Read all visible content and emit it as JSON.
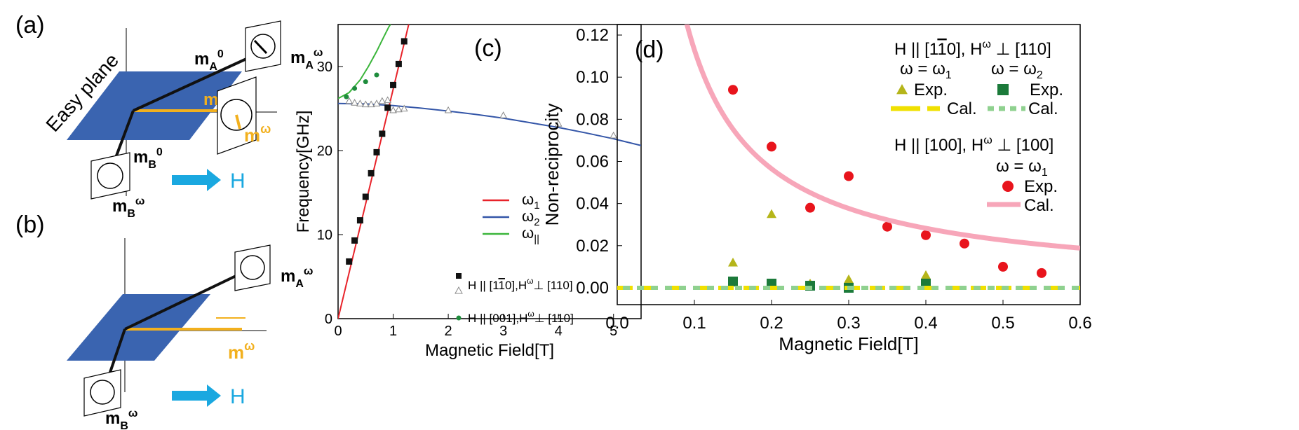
{
  "colors": {
    "easy_plane": "#3a64b0",
    "vector": "#111111",
    "m_omega": "#f2b01e",
    "field_arrow": "#1aa8e0",
    "omega1_line": "#e8232a",
    "omega2_line": "#3456a8",
    "omega_par_line": "#3bb53b",
    "exp_sq": "#111111",
    "exp_tri": "#888888",
    "exp_circ_c": "#1e8c3c",
    "exp_tri_d": "#b5b51a",
    "exp_sq_d": "#1b7a3a",
    "exp_circ_d": "#e8141c",
    "cal_yellow": "#f0e000",
    "cal_green": "#8fd18f",
    "cal_pink": "#f7a6b9"
  },
  "panel_a": {
    "label": "(a)",
    "easy_plane_label": "Easy plane",
    "mA0": {
      "m": "m",
      "sub": "A",
      "sup": "0"
    },
    "mAw": {
      "m": "m",
      "sub": "A",
      "sup": "ω"
    },
    "m0": {
      "m": "m",
      "sup": "0"
    },
    "mw": {
      "m": "m",
      "sup": "ω"
    },
    "mB0": {
      "m": "m",
      "sub": "B",
      "sup": "0"
    },
    "mBw": {
      "m": "m",
      "sub": "B",
      "sup": "ω"
    },
    "H": "H"
  },
  "panel_b": {
    "label": "(b)",
    "mAw": {
      "m": "m",
      "sub": "A",
      "sup": "ω"
    },
    "mw": {
      "m": "m",
      "sup": "ω"
    },
    "mBw": {
      "m": "m",
      "sub": "B",
      "sup": "ω"
    },
    "H": "H"
  },
  "chart_data": [
    {
      "panel": "(c)",
      "type": "line",
      "xlabel": "Magnetic Field[T]",
      "ylabel": "Frequency[GHz]",
      "xlim": [
        0,
        5.5
      ],
      "ylim": [
        0,
        35
      ],
      "xticks": [
        0,
        1,
        2,
        3,
        4,
        5
      ],
      "yticks": [
        0,
        10,
        20,
        30
      ],
      "series": [
        {
          "name": "ω1",
          "key": "omega1_line",
          "kind": "line",
          "x": [
            0,
            1.3
          ],
          "y": [
            0,
            35.5
          ]
        },
        {
          "name": "ω2",
          "key": "omega2_line",
          "kind": "line",
          "x": [
            0,
            0.5,
            1,
            1.5,
            2,
            2.5,
            3,
            3.5,
            4,
            4.5,
            5,
            5.5
          ],
          "y": [
            25.6,
            25.55,
            25.35,
            25.05,
            24.7,
            24.3,
            23.85,
            23.3,
            22.75,
            22.1,
            21.4,
            20.6
          ]
        },
        {
          "name": "ω||",
          "key": "omega_par_line",
          "kind": "line",
          "x": [
            0,
            0.2,
            0.4,
            0.55,
            0.7,
            0.82,
            0.92,
            1.0
          ],
          "y": [
            26.2,
            26.9,
            28.4,
            30,
            31.8,
            33.4,
            34.7,
            35.5
          ]
        },
        {
          "name": "H || [11̄0],Hω⊥ [110]",
          "key": "exp_sq",
          "kind": "square",
          "x": [
            0.2,
            0.3,
            0.4,
            0.5,
            0.6,
            0.7,
            0.8,
            0.9,
            1.0,
            1.1,
            1.2
          ],
          "y": [
            6.8,
            9.3,
            11.7,
            14.5,
            17.3,
            19.8,
            22.0,
            25.1,
            27.8,
            30.3,
            33.0
          ]
        },
        {
          "name": "H || [11̄0],Hω⊥ [110]",
          "key": "exp_tri",
          "kind": "triangle",
          "x": [
            0.2,
            0.3,
            0.4,
            0.5,
            0.6,
            0.7,
            0.8,
            0.9,
            1.0,
            1.1,
            1.2,
            2.0,
            3.0,
            4.0,
            5.0
          ],
          "y": [
            25.9,
            25.7,
            25.6,
            25.5,
            25.5,
            25.6,
            25.9,
            26.0,
            24.8,
            24.9,
            25.0,
            24.8,
            24.2,
            23.2,
            21.8
          ]
        },
        {
          "name": "H || [001],Hω⊥ [110]",
          "key": "exp_circ_c",
          "kind": "circle",
          "x": [
            0.15,
            0.3,
            0.5,
            0.7
          ],
          "y": [
            26.4,
            27.4,
            28.2,
            29.0
          ]
        }
      ],
      "legend": [
        {
          "label": "ω",
          "sub": "1",
          "key": "omega1_line"
        },
        {
          "label": "ω",
          "sub": "2",
          "key": "omega2_line"
        },
        {
          "label": "ω",
          "sub": "||",
          "key": "omega_par_line"
        }
      ],
      "legend_exp": [
        {
          "label": "H || [1",
          "bar": "1",
          "tail": "0],H",
          "sup": "ω",
          "rest": "⊥ [110]"
        },
        {
          "label": "H || [001],H",
          "sup": "ω",
          "rest": "⊥ [110]"
        }
      ]
    },
    {
      "panel": "(d)",
      "type": "scatter",
      "xlabel": "Magnetic Field[T]",
      "ylabel": "Non-reciprocity",
      "xlim": [
        0,
        0.6
      ],
      "ylim": [
        -0.008,
        0.125
      ],
      "xticks": [
        "0.0",
        "0.1",
        "0.2",
        "0.3",
        "0.4",
        "0.5",
        "0.6"
      ],
      "yticks": [
        "0.00",
        "0.02",
        "0.04",
        "0.06",
        "0.08",
        "0.10",
        "0.12"
      ],
      "series": [
        {
          "name": "Exp.",
          "key": "exp_tri_d",
          "kind": "triangle",
          "x": [
            0.15,
            0.2,
            0.25,
            0.3,
            0.4
          ],
          "y": [
            0.012,
            0.035,
            0.002,
            0.004,
            0.006
          ]
        },
        {
          "name": "Exp.",
          "key": "exp_sq_d",
          "kind": "square",
          "x": [
            0.15,
            0.2,
            0.25,
            0.3,
            0.4
          ],
          "y": [
            0.003,
            0.002,
            0.001,
            0.0,
            0.002
          ]
        },
        {
          "name": "Exp.",
          "key": "exp_circ_d",
          "kind": "circle",
          "x": [
            0.15,
            0.2,
            0.25,
            0.3,
            0.35,
            0.4,
            0.45,
            0.5,
            0.55
          ],
          "y": [
            0.094,
            0.067,
            0.038,
            0.053,
            0.029,
            0.025,
            0.021,
            0.01,
            0.007
          ]
        },
        {
          "name": "Cal.",
          "key": "cal_pink",
          "kind": "curve",
          "k": 0.0113
        },
        {
          "name": "Cal.",
          "key": "cal_yellow",
          "kind": "flat",
          "y": 0.0
        },
        {
          "name": "Cal.",
          "key": "cal_green",
          "kind": "flat",
          "y": 0.0
        }
      ],
      "legend_header1": {
        "a": "H || [1",
        "bar": "1",
        "b": "0], H",
        "sup": "ω",
        "c": " ⊥ [110]"
      },
      "legend_cols": {
        "w1": {
          "t": "ω = ω",
          "sub": "1"
        },
        "w2": {
          "t": "ω = ω",
          "sub": "2"
        }
      },
      "legend_header2": {
        "a": "H || [100], H",
        "sup": "ω",
        "c": " ⊥ [100]"
      },
      "legend_col3": {
        "t": "ω = ω",
        "sub": "1"
      },
      "exp_label": "Exp.",
      "cal_label": "Cal."
    }
  ]
}
